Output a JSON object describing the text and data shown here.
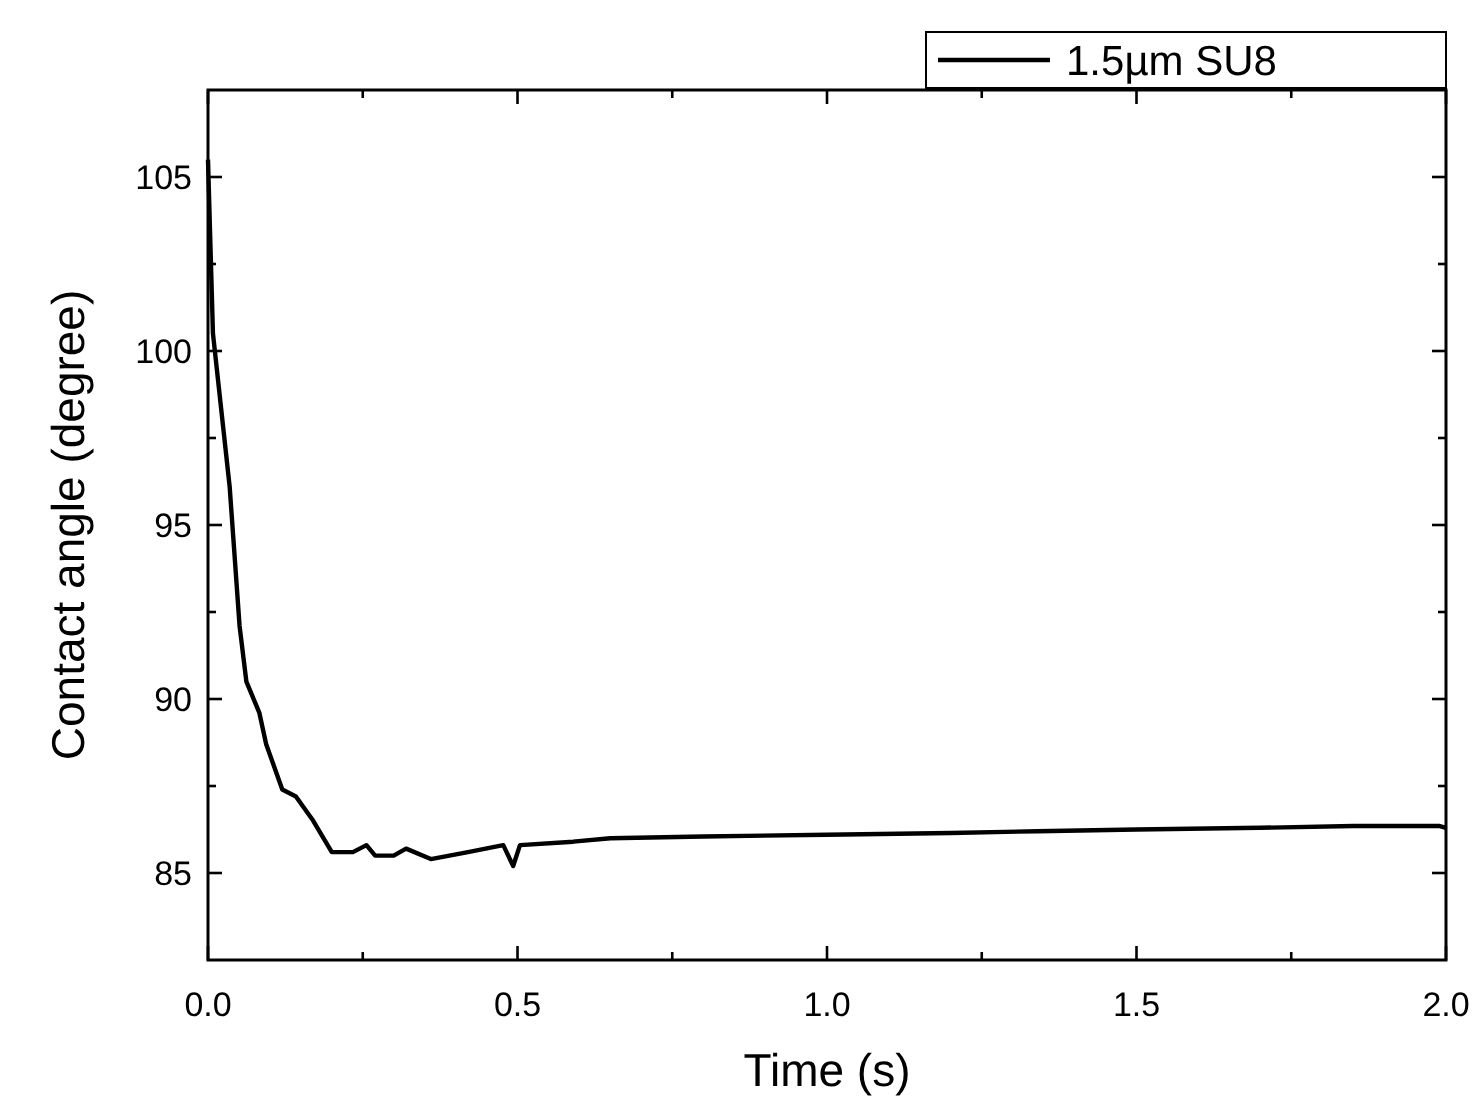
{
  "chart_data": {
    "type": "line",
    "xlabel": "Time (s)",
    "ylabel": "Contact angle (degree)",
    "xlim": [
      0,
      2
    ],
    "ylim": [
      82.5,
      107.5
    ],
    "xticks": [
      {
        "value": 0,
        "label": "0.0"
      },
      {
        "value": 0.25,
        "label": null
      },
      {
        "value": 0.5,
        "label": "0.5"
      },
      {
        "value": 0.75,
        "label": null
      },
      {
        "value": 1,
        "label": "1.0"
      },
      {
        "value": 1.25,
        "label": null
      },
      {
        "value": 1.5,
        "label": "1.5"
      },
      {
        "value": 1.75,
        "label": null
      },
      {
        "value": 2,
        "label": "2.0"
      }
    ],
    "yticks": [
      85,
      {
        "value": 87.5,
        "label": null
      },
      90,
      {
        "value": 92.5,
        "label": null
      },
      95,
      {
        "value": 97.5,
        "label": null
      },
      100,
      {
        "value": 102.5,
        "label": null
      },
      105
    ],
    "legend": "top right",
    "grid": false,
    "marker": "none",
    "line_style": "solid",
    "series": [
      {
        "name": "1.5µm SU8",
        "color": "#000000",
        "x": [
          0,
          0.008,
          0.035,
          0.051,
          0.062,
          0.083,
          0.094,
          0.12,
          0.142,
          0.17,
          0.2,
          0.234,
          0.256,
          0.27,
          0.3,
          0.32,
          0.36,
          0.42,
          0.477,
          0.493,
          0.504,
          0.59,
          0.65,
          0.8,
          1.0,
          1.2,
          1.34,
          1.5,
          1.7,
          1.85,
          1.99,
          2.0
        ],
        "values": [
          105.5,
          100.5,
          96.1,
          92.1,
          90.5,
          89.6,
          88.7,
          87.4,
          87.2,
          86.5,
          85.6,
          85.6,
          85.8,
          85.5,
          85.5,
          85.7,
          85.4,
          85.6,
          85.8,
          85.2,
          85.8,
          85.9,
          86.0,
          86.05,
          86.1,
          86.15,
          86.2,
          86.25,
          86.3,
          86.35,
          86.35,
          86.3
        ]
      }
    ]
  }
}
